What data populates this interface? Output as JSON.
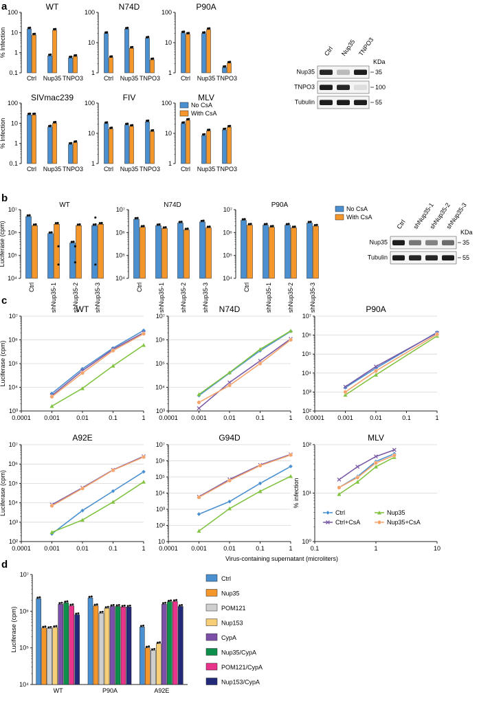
{
  "colors": {
    "blue": "#4a90d0",
    "orange": "#f5962a",
    "gray": "#cfcfcf",
    "yellow": "#f7cf78",
    "purple": "#7c4fa8",
    "green": "#0d8f4c",
    "pink": "#e8348b",
    "navy": "#232a7a",
    "lineBlue": "#4a90d0",
    "lineGreen": "#82c341",
    "linePurple": "#7b5aa6",
    "lineOrange": "#f4a46c"
  },
  "panels": {
    "a": "a",
    "b": "b",
    "c": "c",
    "d": "d"
  },
  "blots": {
    "a": {
      "lanes": [
        "Ctrl",
        "Nup35",
        "TNPO3"
      ],
      "kda": "KDa",
      "rows": [
        {
          "name": "Nup35",
          "mw": "35"
        },
        {
          "name": "TNPO3",
          "mw": "100"
        },
        {
          "name": "Tubulin",
          "mw": "55"
        }
      ]
    },
    "b": {
      "lanes": [
        "Ctrl",
        "shNup35-1",
        "shNup35-2",
        "shNup35-3"
      ],
      "kda": "KDa",
      "rows": [
        {
          "name": "Nup35",
          "mw": "35"
        },
        {
          "name": "Tubulin",
          "mw": "55"
        }
      ]
    }
  },
  "chart_data": [
    {
      "id": "a-WT",
      "type": "bar",
      "title": "WT",
      "ylabel": "% Infection",
      "categories": [
        "Ctrl",
        "Nup35",
        "TNPO3"
      ],
      "ylim": [
        0.1,
        100
      ],
      "yticks": [
        "0.1",
        "1",
        "10",
        "100"
      ],
      "series": [
        {
          "name": "No CsA",
          "values": [
            15,
            0.7,
            0.55
          ]
        },
        {
          "name": "With CsA",
          "values": [
            7.5,
            13,
            0.65
          ]
        }
      ]
    },
    {
      "id": "a-N74D",
      "type": "bar",
      "title": "N74D",
      "categories": [
        "Ctrl",
        "Nup35",
        "TNPO3"
      ],
      "ylim": [
        1,
        100
      ],
      "yticks": [
        "1",
        "10",
        "100"
      ],
      "series": [
        {
          "name": "No CsA",
          "values": [
            20,
            28,
            14
          ]
        },
        {
          "name": "With CsA",
          "values": [
            3.2,
            6.5,
            2.7
          ]
        }
      ]
    },
    {
      "id": "a-P90A",
      "type": "bar",
      "title": "P90A",
      "categories": [
        "Ctrl",
        "Nup35",
        "TNPO3"
      ],
      "ylim": [
        1,
        100
      ],
      "yticks": [
        "1",
        "10",
        "100"
      ],
      "series": [
        {
          "name": "No CsA",
          "values": [
            21,
            20,
            1.5
          ]
        },
        {
          "name": "With CsA",
          "values": [
            19,
            27,
            2.1
          ]
        }
      ]
    },
    {
      "id": "a-SIVmac239",
      "type": "bar",
      "title": "SIVmac239",
      "ylabel": "% Infection",
      "categories": [
        "Ctrl",
        "Nup35",
        "TNPO3"
      ],
      "ylim": [
        0.1,
        100
      ],
      "yticks": [
        "0.1",
        "1",
        "10",
        "100"
      ],
      "series": [
        {
          "name": "No CsA",
          "values": [
            26,
            6.5,
            0.9
          ]
        },
        {
          "name": "With CsA",
          "values": [
            26,
            10,
            1.1
          ]
        }
      ]
    },
    {
      "id": "a-FIV",
      "type": "bar",
      "title": "FIV",
      "categories": [
        "Ctrl",
        "Nup35",
        "TNPO3"
      ],
      "ylim": [
        1,
        100
      ],
      "yticks": [
        "1",
        "10",
        "100"
      ],
      "series": [
        {
          "name": "No CsA",
          "values": [
            21,
            19,
            24
          ]
        },
        {
          "name": "With CsA",
          "values": [
            14,
            17,
            11.5
          ]
        }
      ]
    },
    {
      "id": "a-MLV",
      "type": "bar",
      "title": "MLV",
      "categories": [
        "Ctrl",
        "Nup35",
        "TNPO3"
      ],
      "ylim": [
        1,
        100
      ],
      "yticks": [
        "1",
        "10",
        "100"
      ],
      "legend": [
        "No CsA",
        "With CsA"
      ],
      "series": [
        {
          "name": "No CsA",
          "values": [
            21,
            8.5,
            13
          ]
        },
        {
          "name": "With CsA",
          "values": [
            27,
            12,
            16
          ]
        }
      ]
    },
    {
      "id": "b-WT",
      "type": "bar",
      "title": "WT",
      "ylabel": "Luciferase (cpm)",
      "categories": [
        "Ctrl",
        "shNup35-1",
        "shNup35-2",
        "shNup35-3"
      ],
      "ylim": [
        10000,
        10000000
      ],
      "yticks": [
        "10⁴",
        "10⁵",
        "10⁶",
        "10⁷"
      ],
      "series": [
        {
          "name": "No CsA",
          "values": [
            5000000,
            900000,
            350000,
            2000000
          ]
        },
        {
          "name": "With CsA",
          "values": [
            2000000,
            2300000,
            2000000,
            2300000
          ]
        }
      ]
    },
    {
      "id": "b-N74D",
      "type": "bar",
      "title": "N74D",
      "categories": [
        "Ctrl",
        "shNup35-1",
        "shNup35-2",
        "shNup35-3"
      ],
      "ylim": [
        10000,
        10000000
      ],
      "yticks": [
        "10⁴",
        "10⁵",
        "10⁶",
        "10⁷"
      ],
      "series": [
        {
          "name": "No CsA",
          "values": [
            3800000,
            2000000,
            2600000,
            2900000
          ]
        },
        {
          "name": "With CsA",
          "values": [
            1700000,
            1500000,
            1300000,
            1600000
          ]
        }
      ]
    },
    {
      "id": "b-P90A",
      "type": "bar",
      "title": "P90A",
      "categories": [
        "Ctrl",
        "shNup35-1",
        "shNup35-2",
        "shNup35-3"
      ],
      "ylim": [
        10000,
        10000000
      ],
      "yticks": [
        "10⁴",
        "10⁵",
        "10⁶",
        "10⁷"
      ],
      "legend": [
        "No CsA",
        "With CsA"
      ],
      "series": [
        {
          "name": "No CsA",
          "values": [
            3400000,
            2100000,
            2100000,
            2600000
          ]
        },
        {
          "name": "With CsA",
          "values": [
            2100000,
            1700000,
            1600000,
            1900000
          ]
        }
      ]
    },
    {
      "id": "c-WT",
      "type": "line",
      "title": "WT",
      "ylabel": "Luciferase (cpm)",
      "x": [
        0.001,
        0.01,
        0.1,
        1
      ],
      "xticks": [
        "0.0001",
        "0.001",
        "0.01",
        "0.1",
        "1"
      ],
      "xlim": [
        0.0001,
        1
      ],
      "ylim": [
        1000,
        10000000
      ],
      "yticks": [
        "10³",
        "10⁴",
        "10⁵",
        "10⁶",
        "10⁷"
      ],
      "series": [
        {
          "name": "Ctrl",
          "values": [
            5500,
            60000,
            450000,
            2500000
          ]
        },
        {
          "name": "Nup35",
          "values": [
            1600,
            9000,
            80000,
            600000
          ]
        },
        {
          "name": "Ctrl+CsA",
          "values": [
            4500,
            50000,
            400000,
            2000000
          ]
        },
        {
          "name": "Nup35+CsA",
          "values": [
            4000,
            40000,
            350000,
            1800000
          ]
        }
      ]
    },
    {
      "id": "c-N74D",
      "type": "line",
      "title": "N74D",
      "x": [
        0.001,
        0.01,
        0.1,
        1
      ],
      "xticks": [
        "0.0001",
        "0.001",
        "0.01",
        "0.1",
        "1"
      ],
      "xlim": [
        0.0001,
        1
      ],
      "ylim": [
        1000,
        10000000
      ],
      "yticks": [
        "10³",
        "10⁴",
        "10⁵",
        "10⁶",
        "10⁷"
      ],
      "series": [
        {
          "name": "Ctrl",
          "values": [
            4500,
            40000,
            350000,
            2300000
          ]
        },
        {
          "name": "Nup35",
          "values": [
            5000,
            42000,
            400000,
            2400000
          ]
        },
        {
          "name": "Ctrl+CsA",
          "values": [
            1300,
            16000,
            130000,
            1100000
          ]
        },
        {
          "name": "Nup35+CsA",
          "values": [
            2300,
            12000,
            100000,
            1000000
          ]
        }
      ]
    },
    {
      "id": "c-P90A",
      "type": "line",
      "title": "P90A",
      "x": [
        0.001,
        0.01,
        1
      ],
      "xticks": [
        "0.0001",
        "0.001",
        "0.01",
        "0.1",
        "1"
      ],
      "xlim": [
        0.0001,
        1
      ],
      "ylim": [
        100,
        10000000
      ],
      "yticks": [
        "10²",
        "10³",
        "10⁴",
        "10⁵",
        "10⁶",
        "10⁷"
      ],
      "series": [
        {
          "name": "Ctrl",
          "values": [
            1700,
            18000,
            1400000
          ]
        },
        {
          "name": "Nup35",
          "values": [
            700,
            8000,
            900000
          ]
        },
        {
          "name": "Ctrl+CsA",
          "values": [
            1900,
            22000,
            1300000
          ]
        },
        {
          "name": "Nup35+CsA",
          "values": [
            1000,
            13000,
            1100000
          ]
        }
      ]
    },
    {
      "id": "c-A92E",
      "type": "line",
      "title": "A92E",
      "ylabel": "Luciferase (cpm)",
      "x": [
        0.001,
        0.01,
        0.1,
        1
      ],
      "xticks": [
        "0.0001",
        "0.001",
        "0.01",
        "0.1",
        "1"
      ],
      "xlim": [
        0.0001,
        1
      ],
      "ylim": [
        100,
        10000000
      ],
      "yticks": [
        "10²",
        "10³",
        "10⁴",
        "10⁵",
        "10⁶",
        "10⁷"
      ],
      "series": [
        {
          "name": "Ctrl",
          "values": [
            250,
            4000,
            40000,
            400000
          ]
        },
        {
          "name": "Nup35",
          "values": [
            300,
            1300,
            11000,
            120000
          ]
        },
        {
          "name": "Ctrl+CsA",
          "values": [
            8000,
            60000,
            500000,
            2500000
          ]
        },
        {
          "name": "Nup35+CsA",
          "values": [
            7000,
            55000,
            480000,
            2300000
          ]
        }
      ]
    },
    {
      "id": "c-G94D",
      "type": "line",
      "title": "G94D",
      "x": [
        0.001,
        0.01,
        0.1,
        1
      ],
      "xticks": [
        "0.0001",
        "0.001",
        "0.01",
        "0.1",
        "1"
      ],
      "xlim": [
        0.0001,
        1
      ],
      "ylim": [
        10,
        10000000
      ],
      "yticks": [
        "10",
        "10²",
        "10³",
        "10⁴",
        "10⁵",
        "10⁶",
        "10⁷"
      ],
      "series": [
        {
          "name": "Ctrl",
          "values": [
            500,
            3000,
            40000,
            450000
          ]
        },
        {
          "name": "Nup35",
          "values": [
            45,
            1100,
            13000,
            110000
          ]
        },
        {
          "name": "Ctrl+CsA",
          "values": [
            6000,
            70000,
            550000,
            2500000
          ]
        },
        {
          "name": "Nup35+CsA",
          "values": [
            5500,
            60000,
            500000,
            2300000
          ]
        }
      ]
    },
    {
      "id": "c-MLV",
      "type": "line",
      "title": "MLV",
      "ylabel": "% infection",
      "x": [
        0.25,
        0.5,
        1,
        2
      ],
      "xticks": [
        "0.1",
        "1",
        "10"
      ],
      "xlim": [
        0.1,
        10
      ],
      "ylim": [
        1,
        100
      ],
      "yticks": [
        "10⁰",
        "10¹",
        "10²"
      ],
      "legend": [
        "Ctrl",
        "Nup35",
        "Ctrl+CsA",
        "Nup35+CsA"
      ],
      "series": [
        {
          "name": "Ctrl",
          "values": [
            13,
            22,
            45,
            65
          ]
        },
        {
          "name": "Nup35",
          "values": [
            9.5,
            17,
            35,
            55
          ]
        },
        {
          "name": "Ctrl+CsA",
          "values": [
            19,
            35,
            57,
            78
          ]
        },
        {
          "name": "Nup35+CsA",
          "values": [
            13,
            21,
            42,
            60
          ]
        }
      ]
    },
    {
      "id": "d",
      "type": "bar",
      "ylabel": "Luciferase (cpm)",
      "categories": [
        "WT",
        "P90A",
        "A92E"
      ],
      "ylim": [
        10000,
        10000000
      ],
      "yticks": [
        "10⁴",
        "10⁵",
        "10⁶",
        "10⁷"
      ],
      "series": [
        {
          "name": "Ctrl",
          "values": [
            2200000,
            2300000,
            370000
          ]
        },
        {
          "name": "Nup35",
          "values": [
            350000,
            1400000,
            100000
          ]
        },
        {
          "name": "POM121",
          "values": [
            340000,
            880000,
            85000
          ]
        },
        {
          "name": "Nup153",
          "values": [
            360000,
            1200000,
            130000
          ]
        },
        {
          "name": "CypA",
          "values": [
            1550000,
            1350000,
            1550000
          ]
        },
        {
          "name": "Nup35/CypA",
          "values": [
            1700000,
            1350000,
            1800000
          ]
        },
        {
          "name": "POM121/CypA",
          "values": [
            1400000,
            1300000,
            1850000
          ]
        },
        {
          "name": "Nup153/CypA",
          "values": [
            800000,
            1300000,
            1350000
          ]
        }
      ]
    }
  ],
  "shared": {
    "xlabel_c": "Virus-containing supernatant (microliters)"
  }
}
